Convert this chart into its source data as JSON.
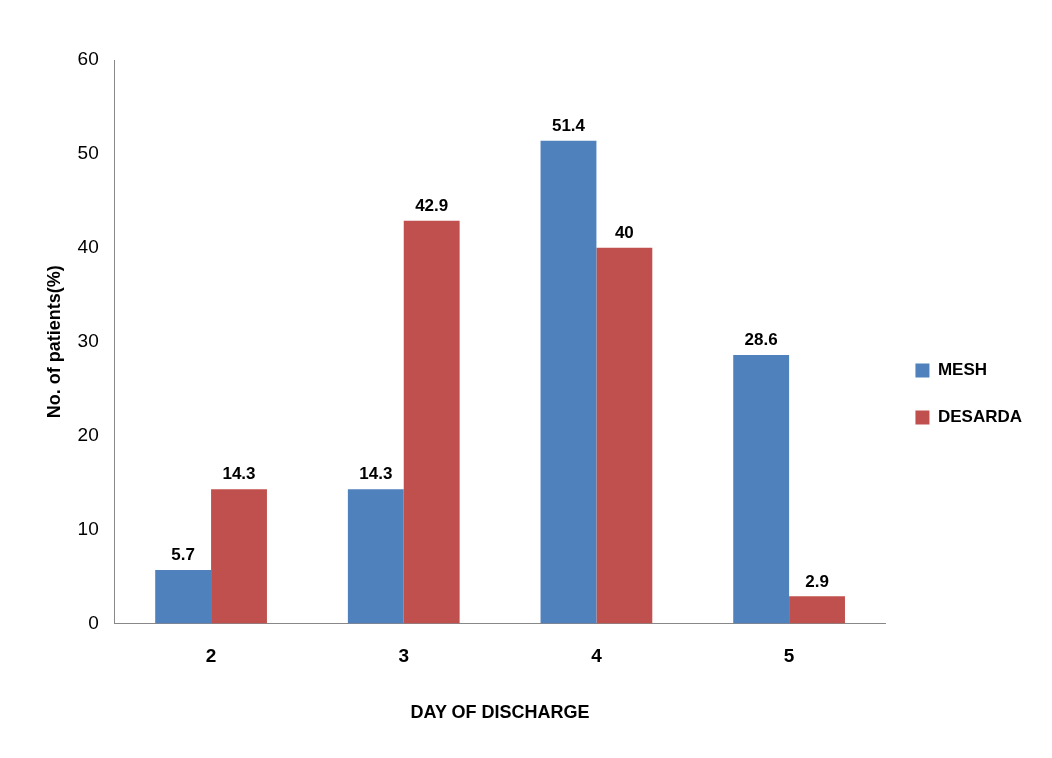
{
  "chart_data": {
    "type": "bar",
    "xlabel": "DAY OF DISCHARGE",
    "ylabel": "No. of patients(%)",
    "categories": [
      "2",
      "3",
      "4",
      "5"
    ],
    "series": [
      {
        "name": "MESH",
        "color": "#4f81bd",
        "values": [
          5.7,
          14.3,
          51.4,
          28.6
        ]
      },
      {
        "name": "DESARDA",
        "color": "#c0504d",
        "values": [
          14.3,
          42.9,
          40,
          2.9
        ]
      }
    ],
    "ylim": [
      0,
      60
    ],
    "yticks": [
      0,
      10,
      20,
      30,
      40,
      50,
      60
    ],
    "grid": false,
    "legend": "right",
    "data_labels": true
  }
}
